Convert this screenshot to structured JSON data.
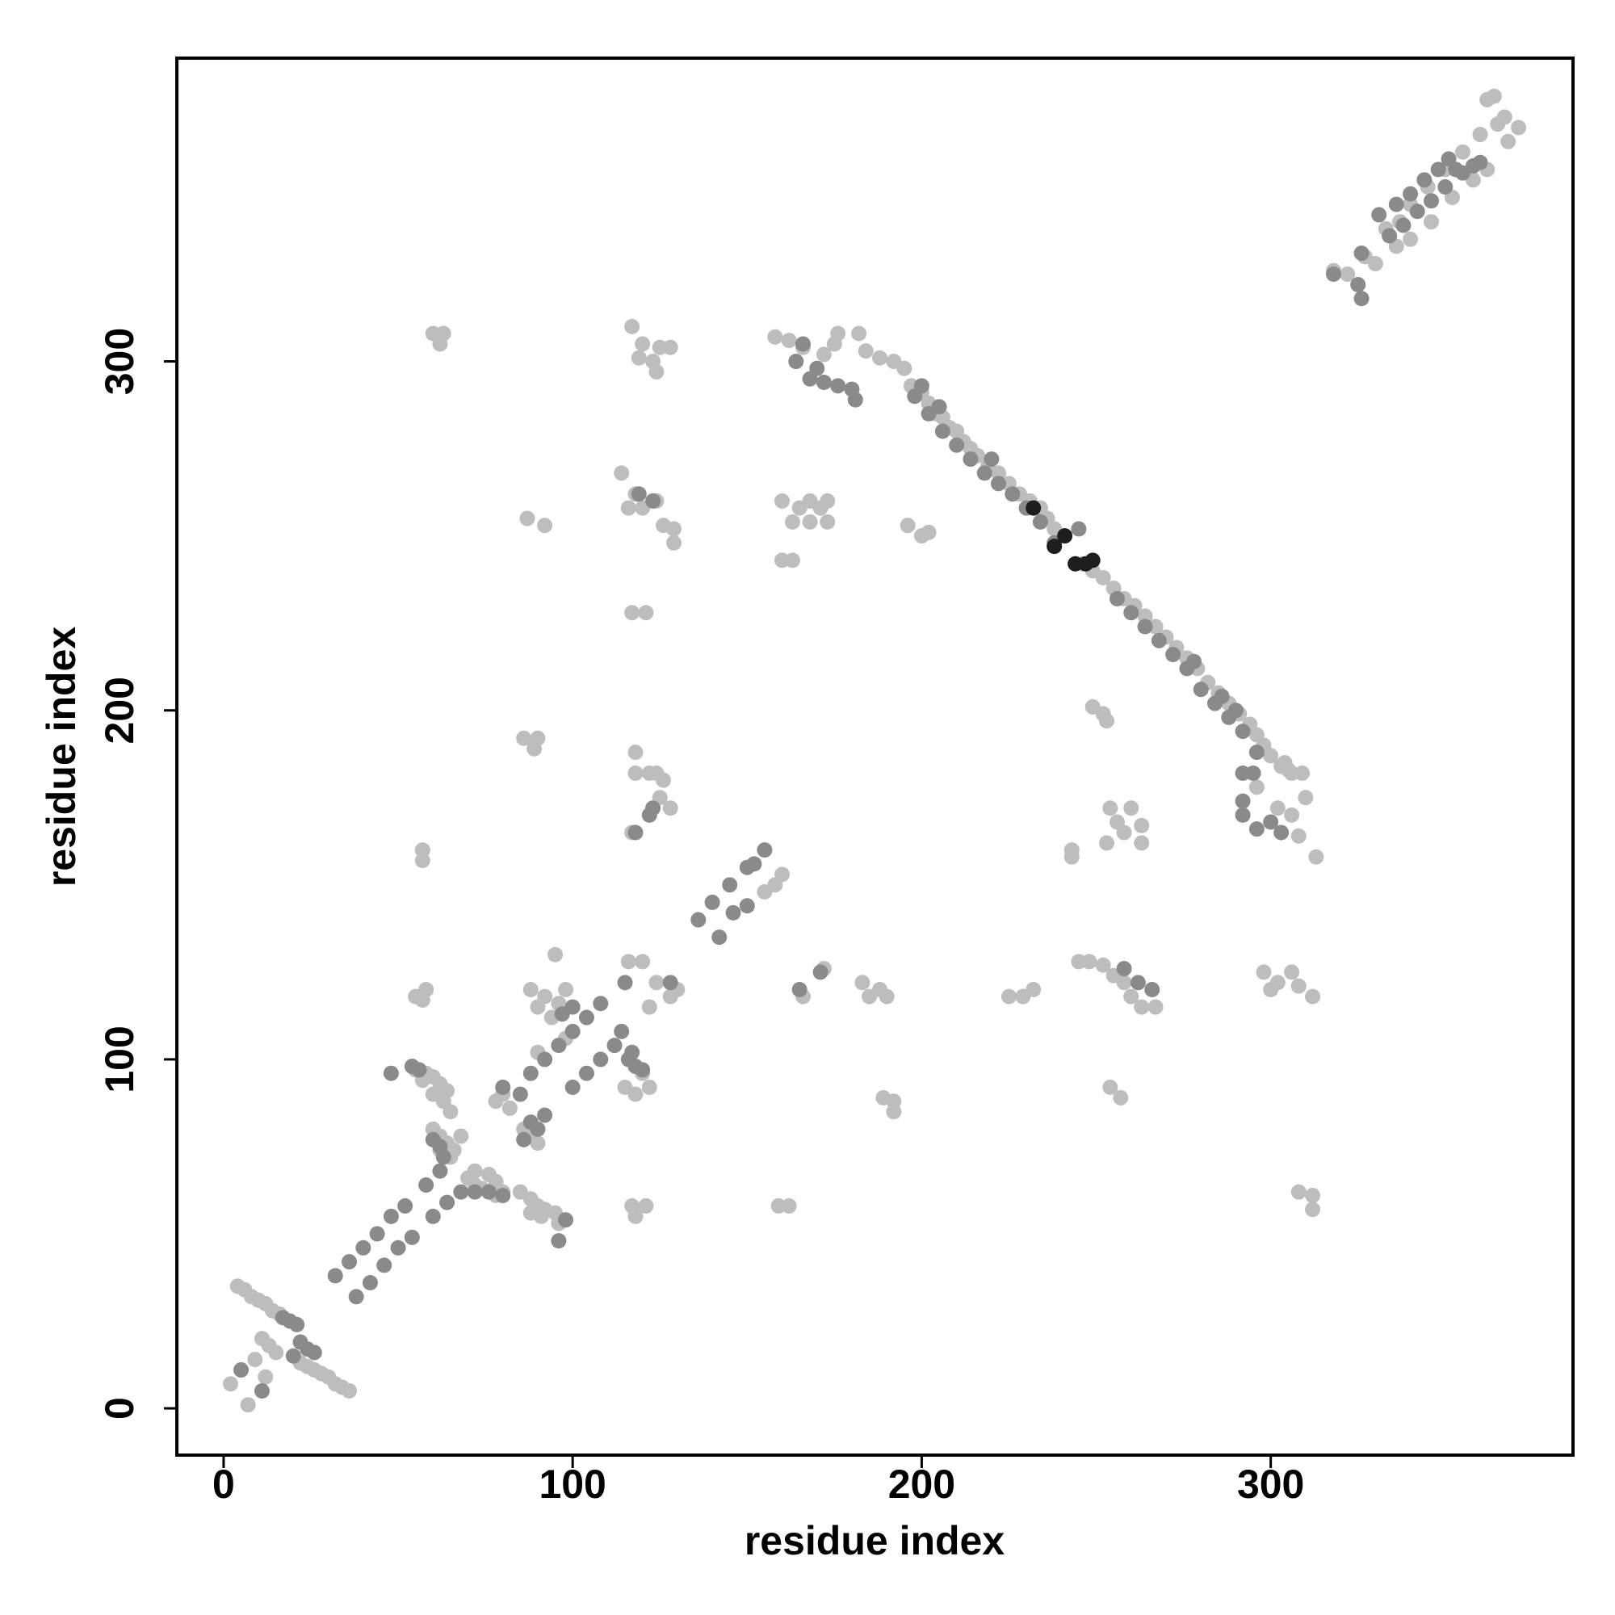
{
  "chart_data": {
    "type": "scatter",
    "xlabel": "residue index",
    "ylabel": "residue index",
    "xlim": [
      -13.4,
      386.6
    ],
    "ylim": [
      -13.4,
      386.9
    ],
    "xticks": [
      0,
      100,
      200,
      300
    ],
    "yticks": [
      0,
      100,
      200,
      300
    ],
    "grid": false,
    "series": [
      {
        "color": "#bdbdbd",
        "x": [
          4,
          6,
          8,
          10,
          12,
          14,
          16,
          11,
          13,
          15,
          9,
          22,
          24,
          26,
          28,
          30,
          32,
          34,
          36,
          2,
          7,
          12,
          55,
          58,
          60,
          62,
          64,
          63,
          60,
          57,
          65,
          60,
          62,
          64,
          66,
          68,
          62,
          65,
          70,
          72,
          74,
          76,
          78,
          80,
          72,
          76,
          78,
          85,
          88,
          90,
          92,
          95,
          96,
          88,
          91,
          78,
          80,
          82,
          86,
          88,
          90,
          90,
          98,
          115,
          120,
          118,
          122,
          88,
          92,
          96,
          98,
          95,
          90,
          94,
          116,
          120,
          124,
          128,
          130,
          122,
          155,
          158,
          160,
          55,
          58,
          57,
          57,
          57,
          60,
          63,
          62,
          87,
          92,
          86,
          90,
          89,
          117,
          120,
          119,
          123,
          125,
          128,
          124,
          114,
          118,
          120,
          124,
          126,
          129,
          129,
          116,
          117,
          121,
          118,
          118,
          122,
          124,
          126,
          125,
          128,
          117,
          117,
          121,
          118,
          159,
          162,
          160,
          163,
          160,
          165,
          168,
          171,
          173,
          163,
          168,
          173,
          166,
          172,
          183,
          185,
          188,
          190,
          192,
          189,
          192,
          196,
          200,
          202,
          229,
          232,
          225,
          245,
          248,
          252,
          255,
          258,
          260,
          263,
          267,
          254,
          257,
          249,
          252,
          253,
          254,
          256,
          258,
          260,
          263,
          253,
          263,
          243,
          243,
          298,
          302,
          306,
          308,
          312,
          300,
          308,
          312,
          312,
          313,
          308,
          306,
          310,
          302,
          296,
          305,
          309,
          304,
          158,
          162,
          166,
          172,
          175,
          176,
          182,
          184,
          188,
          192,
          195,
          197,
          200,
          202,
          204,
          206,
          208,
          210,
          212,
          214,
          216,
          219,
          222,
          225,
          228,
          231,
          234,
          236,
          238,
          240,
          246,
          249,
          252,
          255,
          258,
          261,
          264,
          267,
          270,
          273,
          276,
          279,
          282,
          285,
          288,
          291,
          294,
          296,
          298,
          300,
          303,
          306,
          318,
          322,
          327,
          330,
          333,
          337,
          340,
          345,
          350,
          355,
          360,
          365,
          367,
          371,
          368,
          362,
          358,
          352,
          346,
          340,
          336,
          362,
          364
        ],
        "values": [
          35,
          34,
          32,
          31,
          30,
          28,
          27,
          20,
          18,
          16,
          14,
          13,
          12,
          11,
          10,
          9,
          7,
          6,
          5,
          7,
          1,
          9,
          97,
          96,
          95,
          93,
          91,
          88,
          90,
          94,
          85,
          80,
          78,
          76,
          74,
          78,
          74,
          72,
          66,
          64,
          63,
          62,
          61,
          62,
          68,
          67,
          65,
          62,
          60,
          58,
          57,
          56,
          53,
          56,
          55,
          88,
          90,
          86,
          80,
          78,
          76,
          102,
          106,
          92,
          96,
          90,
          92,
          120,
          118,
          116,
          120,
          130,
          115,
          112,
          128,
          128,
          122,
          118,
          120,
          115,
          148,
          150,
          153,
          118,
          120,
          117,
          157,
          160,
          308,
          308,
          305,
          255,
          253,
          192,
          192,
          189,
          310,
          305,
          301,
          300,
          304,
          304,
          297,
          268,
          262,
          258,
          260,
          253,
          252,
          248,
          258,
          228,
          228,
          188,
          182,
          182,
          182,
          180,
          175,
          172,
          165,
          58,
          58,
          55,
          58,
          58,
          243,
          243,
          260,
          258,
          254,
          258,
          254,
          254,
          260,
          260,
          118,
          126,
          122,
          118,
          120,
          118,
          88,
          89,
          85,
          253,
          250,
          251,
          118,
          120,
          118,
          128,
          128,
          127,
          124,
          122,
          118,
          115,
          115,
          92,
          89,
          201,
          199,
          197,
          172,
          168,
          165,
          172,
          167,
          162,
          162,
          158,
          160,
          125,
          122,
          125,
          121,
          118,
          120,
          62,
          61,
          57,
          158,
          164,
          170,
          175,
          172,
          178,
          183,
          182,
          185,
          307,
          306,
          304,
          302,
          305,
          308,
          308,
          303,
          301,
          300,
          298,
          293,
          291,
          288,
          285,
          284,
          281,
          280,
          277,
          275,
          273,
          270,
          268,
          265,
          262,
          260,
          258,
          255,
          252,
          250,
          242,
          240,
          238,
          235,
          232,
          230,
          227,
          224,
          221,
          218,
          215,
          212,
          208,
          205,
          202,
          199,
          196,
          193,
          190,
          187,
          184,
          182,
          326,
          325,
          330,
          328,
          338,
          340,
          345,
          350,
          355,
          360,
          365,
          368,
          370,
          367,
          363,
          355,
          352,
          347,
          340,
          335,
          333,
          375,
          376
        ]
      },
      {
        "color": "#8a8a8a",
        "x": [
          17,
          19,
          21,
          22,
          24,
          26,
          5,
          11,
          20,
          32,
          36,
          40,
          44,
          48,
          52,
          58,
          62,
          38,
          42,
          46,
          50,
          54,
          60,
          64,
          68,
          48,
          54,
          56,
          60,
          62,
          63,
          72,
          76,
          80,
          96,
          98,
          80,
          85,
          88,
          92,
          86,
          90,
          88,
          92,
          96,
          100,
          104,
          108,
          100,
          104,
          108,
          112,
          114,
          116,
          118,
          97,
          100,
          115,
          128,
          136,
          140,
          145,
          150,
          152,
          155,
          142,
          146,
          150,
          118,
          122,
          123,
          117,
          120,
          165,
          171,
          258,
          262,
          266,
          300,
          303,
          292,
          292,
          296,
          292,
          295,
          123,
          119,
          164,
          166,
          170,
          172,
          176,
          180,
          181,
          168,
          198,
          202,
          206,
          210,
          214,
          218,
          222,
          226,
          230,
          234,
          238,
          256,
          260,
          264,
          268,
          272,
          276,
          280,
          284,
          288,
          292,
          296,
          200,
          205,
          220,
          245,
          278,
          286,
          290,
          318,
          325,
          326,
          331,
          336,
          340,
          344,
          348,
          351,
          353,
          334,
          338,
          342,
          346,
          350,
          355,
          358,
          360,
          326
        ],
        "values": [
          26,
          25,
          24,
          19,
          17,
          16,
          11,
          5,
          15,
          38,
          42,
          46,
          50,
          55,
          58,
          64,
          68,
          32,
          36,
          41,
          46,
          49,
          55,
          59,
          62,
          96,
          98,
          97,
          77,
          75,
          72,
          62,
          62,
          61,
          48,
          54,
          92,
          90,
          82,
          84,
          77,
          80,
          96,
          100,
          104,
          108,
          112,
          116,
          92,
          96,
          100,
          104,
          108,
          100,
          98,
          113,
          115,
          122,
          122,
          140,
          145,
          150,
          155,
          156,
          160,
          135,
          142,
          144,
          165,
          170,
          172,
          102,
          97,
          120,
          125,
          126,
          122,
          120,
          168,
          165,
          170,
          174,
          166,
          182,
          182,
          260,
          262,
          300,
          305,
          298,
          294,
          293,
          292,
          289,
          295,
          290,
          285,
          280,
          276,
          272,
          268,
          265,
          262,
          258,
          254,
          248,
          232,
          228,
          224,
          220,
          216,
          212,
          206,
          202,
          198,
          194,
          188,
          293,
          287,
          272,
          252,
          214,
          204,
          200,
          325,
          322,
          318,
          342,
          345,
          348,
          352,
          355,
          358,
          355,
          336,
          339,
          343,
          346,
          350,
          354,
          356,
          357,
          331
        ]
      },
      {
        "color": "#1e1e1e",
        "x": [
          241,
          238,
          244,
          247,
          249,
          232
        ],
        "values": [
          250,
          247,
          242,
          242,
          243,
          258
        ]
      }
    ]
  }
}
